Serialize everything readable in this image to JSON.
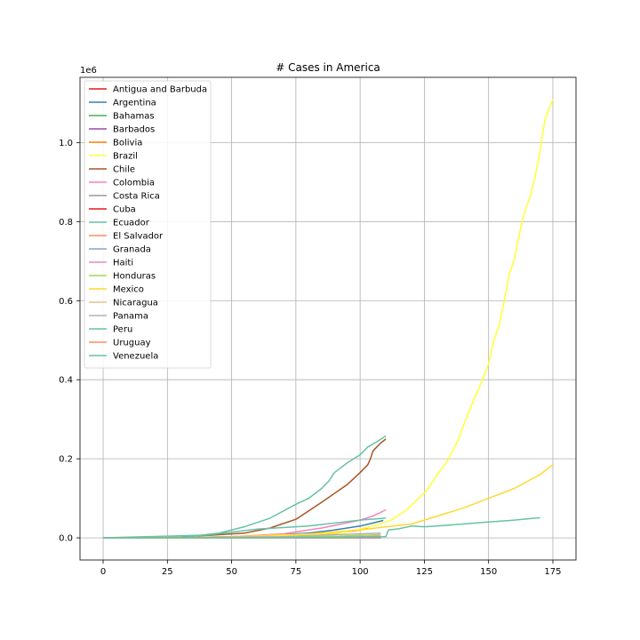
{
  "chart_data": {
    "type": "line",
    "title": "# Cases in America",
    "xlabel": "",
    "ylabel": "",
    "y_offset_label": "1e6",
    "xlim": [
      -9,
      184
    ],
    "ylim": [
      -56000,
      1165000
    ],
    "x_ticks": [
      0,
      25,
      50,
      75,
      100,
      125,
      150,
      175
    ],
    "y_ticks": [
      0.0,
      0.2,
      0.4,
      0.6,
      0.8,
      1.0
    ],
    "y_tick_scale": 1000000,
    "grid": true,
    "legend_position": "upper left",
    "series": [
      {
        "name": "Antigua and Barbuda",
        "color": "#e41a1c",
        "x": [
          0,
          108
        ],
        "y": [
          0,
          25
        ]
      },
      {
        "name": "Argentina",
        "color": "#377eb8",
        "x": [
          0,
          20,
          40,
          60,
          80,
          90,
          100,
          104,
          109
        ],
        "y": [
          0,
          200,
          1500,
          5000,
          12000,
          20000,
          30000,
          36000,
          44000
        ]
      },
      {
        "name": "Bahamas",
        "color": "#4daf4a",
        "x": [
          0,
          108
        ],
        "y": [
          0,
          110
        ]
      },
      {
        "name": "Barbados",
        "color": "#984ea3",
        "x": [
          0,
          108
        ],
        "y": [
          0,
          100
        ]
      },
      {
        "name": "Bolivia",
        "color": "#ff7f00",
        "x": [
          0,
          30,
          60,
          80,
          90,
          96,
          100,
          103
        ],
        "y": [
          0,
          50,
          2000,
          7000,
          12000,
          16000,
          20000,
          24000
        ]
      },
      {
        "name": "Brazil",
        "color": "#ffff33",
        "x": [
          0,
          40,
          60,
          80,
          95,
          105,
          112,
          118,
          122,
          126,
          130,
          134,
          138,
          142,
          146,
          150,
          152,
          154,
          156,
          158,
          160,
          162,
          164,
          166,
          168,
          170,
          172,
          175
        ],
        "y": [
          0,
          500,
          3500,
          8000,
          15000,
          30000,
          45000,
          70000,
          95000,
          120000,
          160000,
          195000,
          245000,
          315000,
          375000,
          440000,
          500000,
          535000,
          595000,
          665000,
          705000,
          770000,
          825000,
          860000,
          910000,
          980000,
          1060000,
          1110000
        ]
      },
      {
        "name": "Chile",
        "color": "#a65628",
        "x": [
          0,
          25,
          40,
          55,
          65,
          75,
          85,
          95,
          100,
          103,
          104,
          105,
          108,
          110
        ],
        "y": [
          0,
          1500,
          6000,
          12000,
          25000,
          47000,
          90000,
          135000,
          165000,
          185000,
          200000,
          220000,
          240000,
          250000
        ]
      },
      {
        "name": "Colombia",
        "color": "#f781bf",
        "x": [
          0,
          25,
          50,
          70,
          85,
          95,
          100,
          105,
          110
        ],
        "y": [
          0,
          500,
          3000,
          10000,
          25000,
          38000,
          45000,
          55000,
          71000
        ]
      },
      {
        "name": "Costa Rica",
        "color": "#999999",
        "x": [
          0,
          108
        ],
        "y": [
          0,
          1500
        ]
      },
      {
        "name": "Cuba",
        "color": "#e41a1c",
        "x": [
          0,
          40,
          108
        ],
        "y": [
          0,
          1000,
          2200
        ]
      },
      {
        "name": "Ecuador",
        "color": "#66c2a5",
        "x": [
          0,
          40,
          60,
          80,
          100,
          110
        ],
        "y": [
          0,
          7000,
          22000,
          30000,
          45000,
          50000
        ]
      },
      {
        "name": "El Salvador",
        "color": "#fc8d62",
        "x": [
          0,
          60,
          90,
          108
        ],
        "y": [
          0,
          200,
          1500,
          3000
        ]
      },
      {
        "name": "Granada",
        "color": "#8da0cb",
        "x": [
          0,
          108
        ],
        "y": [
          0,
          23
        ]
      },
      {
        "name": "Haiti",
        "color": "#e78ac3",
        "x": [
          0,
          70,
          95,
          108
        ],
        "y": [
          0,
          100,
          2000,
          4500
        ]
      },
      {
        "name": "Honduras",
        "color": "#a6d854",
        "x": [
          0,
          60,
          90,
          108
        ],
        "y": [
          0,
          500,
          4000,
          8000
        ]
      },
      {
        "name": "Mexico",
        "color": "#ffd92f",
        "x": [
          0,
          50,
          80,
          100,
          110,
          120,
          130,
          140,
          150,
          160,
          170,
          175
        ],
        "y": [
          0,
          3000,
          10000,
          20000,
          28000,
          35000,
          55000,
          75000,
          100000,
          125000,
          160000,
          185000
        ]
      },
      {
        "name": "Nicaragua",
        "color": "#e5c494",
        "x": [
          0,
          108
        ],
        "y": [
          0,
          600
        ]
      },
      {
        "name": "Panama",
        "color": "#b3b3b3",
        "x": [
          0,
          70,
          90,
          108
        ],
        "y": [
          0,
          3000,
          8000,
          12000
        ]
      },
      {
        "name": "Peru",
        "color": "#66c2a5",
        "x": [
          0,
          30,
          45,
          55,
          65,
          75,
          80,
          85,
          88,
          90,
          92,
          95,
          100,
          103,
          107,
          110
        ],
        "y": [
          0,
          1000,
          12000,
          28000,
          50000,
          85000,
          100000,
          125000,
          145000,
          165000,
          175000,
          190000,
          210000,
          230000,
          245000,
          258000
        ]
      },
      {
        "name": "Uruguay",
        "color": "#fc8d62",
        "x": [
          0,
          108
        ],
        "y": [
          0,
          800
        ]
      },
      {
        "name": "Venezuela",
        "color": "#66c2a5",
        "x": [
          0,
          60,
          100,
          110,
          111,
          115,
          120,
          125,
          130,
          140,
          150,
          160,
          170
        ],
        "y": [
          0,
          500,
          2000,
          3000,
          20000,
          23000,
          30000,
          28000,
          30000,
          35000,
          40000,
          45000,
          51000
        ]
      }
    ]
  }
}
